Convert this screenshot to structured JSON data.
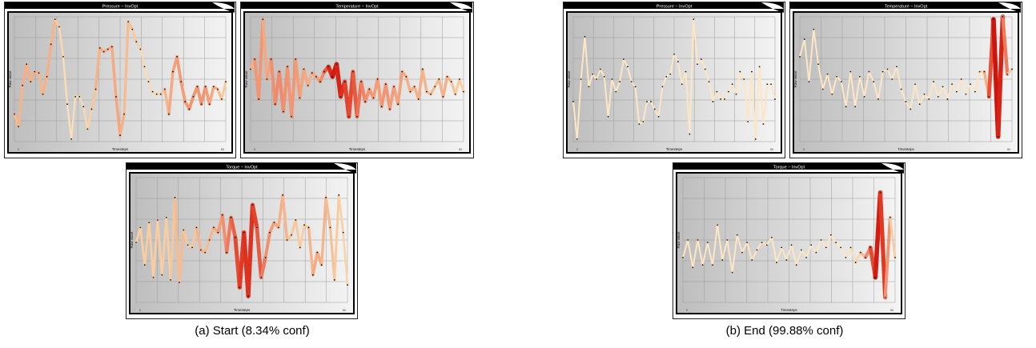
{
  "captions": {
    "start": "(a) Start (8.34% conf)",
    "end": "(b) End (99.88% conf)"
  },
  "colors": {
    "low_saliency": "#fff1cf",
    "high_saliency": "#d7140f",
    "panel_bg_light": "#f6f6f6",
    "panel_bg_dark": "#c8c8c8",
    "title_bar": "#000000"
  },
  "chart_data": [
    {
      "type": "line",
      "group": "start",
      "title": "Pressure − InvOpt",
      "xlabel": "Timesteps",
      "ylabel": "Raw value",
      "x_ticks": [
        "0",
        "50"
      ],
      "grid": true,
      "ylim": [
        0,
        1
      ],
      "values": [
        0.22,
        0.12,
        0.45,
        0.62,
        0.48,
        0.56,
        0.55,
        0.38,
        0.52,
        0.78,
        0.98,
        0.92,
        0.68,
        0.3,
        0.02,
        0.36,
        0.36,
        0.28,
        0.1,
        0.26,
        0.42,
        0.75,
        0.72,
        0.74,
        0.76,
        0.36,
        0.05,
        0.22,
        0.96,
        0.9,
        0.8,
        0.74,
        0.6,
        0.48,
        0.4,
        0.38,
        0.38,
        0.42,
        0.22,
        0.56,
        0.68,
        0.48,
        0.32,
        0.26,
        0.36,
        0.44,
        0.3,
        0.44,
        0.3,
        0.44,
        0.42,
        0.34,
        0.48
      ],
      "saliency": [
        0.4,
        0.4,
        0.45,
        0.45,
        0.45,
        0.45,
        0.42,
        0.42,
        0.44,
        0.45,
        0.4,
        0.25,
        0.2,
        0.15,
        0.15,
        0.2,
        0.2,
        0.2,
        0.25,
        0.3,
        0.42,
        0.45,
        0.45,
        0.45,
        0.45,
        0.48,
        0.48,
        0.4,
        0.4,
        0.35,
        0.3,
        0.25,
        0.2,
        0.2,
        0.2,
        0.22,
        0.3,
        0.4,
        0.45,
        0.5,
        0.5,
        0.55,
        0.5,
        0.55,
        0.55,
        0.55,
        0.55,
        0.55,
        0.5,
        0.45,
        0.45,
        0.35,
        0.3
      ]
    },
    {
      "type": "line",
      "group": "start",
      "title": "Temperature − InvOpt",
      "xlabel": "Timesteps",
      "ylabel": "Raw value",
      "x_ticks": [
        "0",
        "50"
      ],
      "grid": true,
      "ylim": [
        0,
        1
      ],
      "values": [
        0.58,
        0.66,
        0.34,
        0.98,
        0.5,
        0.66,
        0.3,
        0.56,
        0.24,
        0.6,
        0.2,
        0.66,
        0.35,
        0.58,
        0.45,
        0.55,
        0.52,
        0.48,
        0.56,
        0.6,
        0.52,
        0.62,
        0.36,
        0.48,
        0.2,
        0.56,
        0.2,
        0.48,
        0.32,
        0.42,
        0.35,
        0.5,
        0.28,
        0.46,
        0.26,
        0.44,
        0.3,
        0.56,
        0.52,
        0.4,
        0.44,
        0.34,
        0.58,
        0.4,
        0.38,
        0.44,
        0.5,
        0.36,
        0.52,
        0.48,
        0.38,
        0.5,
        0.4
      ],
      "saliency": [
        0.4,
        0.5,
        0.6,
        0.5,
        0.45,
        0.55,
        0.6,
        0.6,
        0.6,
        0.55,
        0.55,
        0.55,
        0.5,
        0.5,
        0.45,
        0.45,
        0.5,
        0.55,
        0.65,
        0.85,
        0.95,
        0.95,
        0.9,
        0.85,
        0.8,
        0.8,
        0.7,
        0.65,
        0.6,
        0.55,
        0.55,
        0.5,
        0.55,
        0.55,
        0.55,
        0.5,
        0.5,
        0.5,
        0.45,
        0.45,
        0.45,
        0.45,
        0.45,
        0.4,
        0.4,
        0.4,
        0.4,
        0.45,
        0.45,
        0.4,
        0.35,
        0.3,
        0.3
      ]
    },
    {
      "type": "line",
      "group": "start",
      "title": "Torque − InvOpt",
      "xlabel": "Timesteps",
      "ylabel": "Raw value",
      "x_ticks": [
        "0",
        "50"
      ],
      "grid": true,
      "ylim": [
        0,
        1
      ],
      "values": [
        0.48,
        0.6,
        0.3,
        0.64,
        0.2,
        0.66,
        0.22,
        0.68,
        0.18,
        0.84,
        0.16,
        0.58,
        0.46,
        0.44,
        0.6,
        0.42,
        0.4,
        0.5,
        0.6,
        0.56,
        0.7,
        0.4,
        0.68,
        0.52,
        0.12,
        0.56,
        0.05,
        0.78,
        0.6,
        0.2,
        0.36,
        0.56,
        0.64,
        0.6,
        0.86,
        0.5,
        0.54,
        0.66,
        0.44,
        0.62,
        0.6,
        0.22,
        0.4,
        0.3,
        0.84,
        0.6,
        0.18,
        0.86,
        0.56,
        0.14
      ],
      "saliency": [
        0.3,
        0.3,
        0.3,
        0.3,
        0.3,
        0.3,
        0.3,
        0.3,
        0.3,
        0.4,
        0.4,
        0.4,
        0.3,
        0.3,
        0.4,
        0.45,
        0.4,
        0.4,
        0.45,
        0.5,
        0.55,
        0.6,
        0.7,
        0.75,
        0.85,
        0.85,
        0.9,
        0.85,
        0.8,
        0.7,
        0.6,
        0.55,
        0.5,
        0.45,
        0.45,
        0.4,
        0.35,
        0.35,
        0.3,
        0.3,
        0.4,
        0.45,
        0.5,
        0.45,
        0.4,
        0.4,
        0.35,
        0.3,
        0.25,
        0.25
      ]
    },
    {
      "type": "line",
      "group": "end",
      "title": "Pressure − InvOpt",
      "xlabel": "Timesteps",
      "ylabel": "Raw value",
      "x_ticks": [
        "0",
        "50"
      ],
      "grid": true,
      "ylim": [
        0,
        1
      ],
      "values": [
        0.32,
        0.02,
        0.5,
        0.84,
        0.44,
        0.54,
        0.5,
        0.58,
        0.52,
        0.2,
        0.5,
        0.4,
        0.48,
        0.66,
        0.6,
        0.48,
        0.44,
        0.14,
        0.16,
        0.32,
        0.32,
        0.26,
        0.2,
        0.44,
        0.52,
        0.54,
        0.7,
        0.64,
        0.46,
        0.56,
        0.06,
        0.98,
        0.62,
        0.66,
        0.58,
        0.48,
        0.32,
        0.4,
        0.34,
        0.34,
        0.4,
        0.46,
        0.38,
        0.56,
        0.5,
        0.16,
        0.56,
        0.02,
        0.6,
        0.14,
        0.46,
        0.46,
        0.34
      ],
      "saliency": [
        0.1,
        0.1,
        0.1,
        0.1,
        0.1,
        0.1,
        0.1,
        0.1,
        0.1,
        0.1,
        0.1,
        0.1,
        0.1,
        0.1,
        0.1,
        0.1,
        0.1,
        0.1,
        0.1,
        0.1,
        0.1,
        0.1,
        0.1,
        0.1,
        0.1,
        0.1,
        0.1,
        0.1,
        0.1,
        0.1,
        0.1,
        0.1,
        0.1,
        0.1,
        0.1,
        0.1,
        0.1,
        0.1,
        0.1,
        0.1,
        0.1,
        0.1,
        0.1,
        0.1,
        0.1,
        0.1,
        0.1,
        0.1,
        0.1,
        0.1,
        0.1,
        0.1,
        0.1
      ]
    },
    {
      "type": "line",
      "group": "end",
      "title": "Temperature − InvOpt",
      "xlabel": "Timesteps",
      "ylabel": "Raw value",
      "x_ticks": [
        "0",
        "50"
      ],
      "grid": true,
      "ylim": [
        0,
        1
      ],
      "values": [
        0.68,
        0.82,
        0.48,
        0.9,
        0.62,
        0.42,
        0.54,
        0.38,
        0.52,
        0.48,
        0.28,
        0.56,
        0.28,
        0.52,
        0.36,
        0.56,
        0.48,
        0.34,
        0.56,
        0.58,
        0.5,
        0.6,
        0.42,
        0.32,
        0.26,
        0.46,
        0.3,
        0.38,
        0.34,
        0.48,
        0.36,
        0.44,
        0.34,
        0.46,
        0.4,
        0.5,
        0.38,
        0.46,
        0.4,
        0.56,
        0.56,
        0.36,
        0.98,
        0.04,
        1.0,
        0.54,
        0.58
      ],
      "saliency": [
        0.1,
        0.1,
        0.1,
        0.1,
        0.1,
        0.1,
        0.1,
        0.1,
        0.1,
        0.1,
        0.1,
        0.1,
        0.1,
        0.1,
        0.1,
        0.1,
        0.1,
        0.1,
        0.1,
        0.1,
        0.1,
        0.1,
        0.1,
        0.1,
        0.1,
        0.1,
        0.1,
        0.1,
        0.1,
        0.1,
        0.1,
        0.1,
        0.1,
        0.1,
        0.1,
        0.1,
        0.1,
        0.1,
        0.1,
        0.15,
        0.3,
        0.6,
        0.95,
        1.0,
        0.85,
        0.45,
        0.2
      ]
    },
    {
      "type": "line",
      "group": "end",
      "title": "Torque − InvOpt",
      "xlabel": "Timesteps",
      "ylabel": "Raw value",
      "x_ticks": [
        "0",
        "50"
      ],
      "grid": true,
      "ylim": [
        0,
        1
      ],
      "values": [
        0.36,
        0.5,
        0.28,
        0.5,
        0.3,
        0.48,
        0.3,
        0.62,
        0.34,
        0.5,
        0.24,
        0.54,
        0.4,
        0.48,
        0.34,
        0.42,
        0.48,
        0.46,
        0.52,
        0.32,
        0.44,
        0.34,
        0.46,
        0.3,
        0.42,
        0.36,
        0.46,
        0.4,
        0.5,
        0.44,
        0.54,
        0.48,
        0.44,
        0.36,
        0.44,
        0.32,
        0.4,
        0.36,
        0.44,
        0.2,
        0.88,
        0.04,
        0.68,
        0.36
      ],
      "saliency": [
        0.1,
        0.1,
        0.1,
        0.1,
        0.1,
        0.1,
        0.1,
        0.1,
        0.1,
        0.1,
        0.1,
        0.1,
        0.1,
        0.1,
        0.1,
        0.1,
        0.1,
        0.1,
        0.1,
        0.1,
        0.1,
        0.1,
        0.1,
        0.1,
        0.1,
        0.1,
        0.1,
        0.1,
        0.1,
        0.1,
        0.1,
        0.1,
        0.1,
        0.1,
        0.15,
        0.2,
        0.3,
        0.5,
        0.7,
        0.9,
        1.0,
        0.7,
        0.4,
        0.2
      ]
    }
  ]
}
